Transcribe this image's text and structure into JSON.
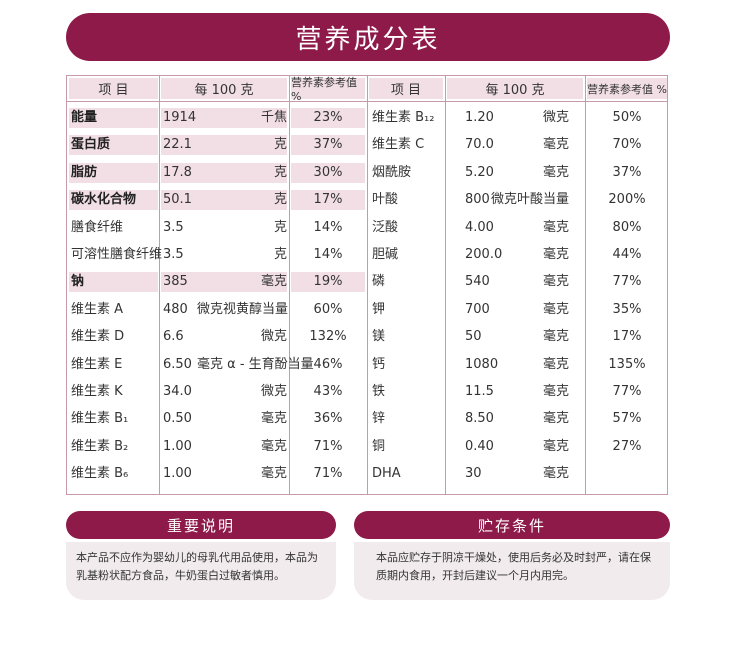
{
  "title": "营养成分表",
  "headers": {
    "item": "项 目",
    "per100": "每 100 克",
    "nrv": "营养素参考值 %"
  },
  "left_rows": [
    {
      "name": "能量",
      "value": "1914",
      "unit": "千焦",
      "nrv": "23%",
      "bold": true,
      "highlight": true
    },
    {
      "name": "蛋白质",
      "value": "22.1",
      "unit": "克",
      "nrv": "37%",
      "bold": true,
      "highlight": true
    },
    {
      "name": "脂肪",
      "value": "17.8",
      "unit": "克",
      "nrv": "30%",
      "bold": true,
      "highlight": true
    },
    {
      "name": "碳水化合物",
      "value": "50.1",
      "unit": "克",
      "nrv": "17%",
      "bold": true,
      "highlight": true
    },
    {
      "name": "膳食纤维",
      "value": "3.5",
      "unit": "克",
      "nrv": "14%",
      "bold": false,
      "highlight": false
    },
    {
      "name": "可溶性膳食纤维",
      "value": "3.5",
      "unit": "克",
      "nrv": "14%",
      "bold": false,
      "highlight": false
    },
    {
      "name": "钠",
      "value": "385",
      "unit": "毫克",
      "nrv": "19%",
      "bold": true,
      "highlight": true
    },
    {
      "name": "维生素 A",
      "value": "480",
      "unit": "微克视黄醇当量",
      "nrv": "60%",
      "bold": false,
      "highlight": false
    },
    {
      "name": "维生素 D",
      "value": "6.6",
      "unit": "微克",
      "nrv": "132%",
      "bold": false,
      "highlight": false
    },
    {
      "name": "维生素 E",
      "value": "6.50",
      "unit": "毫克 α - 生育酚当量",
      "nrv": "46%",
      "bold": false,
      "highlight": false
    },
    {
      "name": "维生素 K",
      "value": "34.0",
      "unit": "微克",
      "nrv": "43%",
      "bold": false,
      "highlight": false
    },
    {
      "name": "维生素 B₁",
      "value": "0.50",
      "unit": "毫克",
      "nrv": "36%",
      "bold": false,
      "highlight": false
    },
    {
      "name": "维生素 B₂",
      "value": "1.00",
      "unit": "毫克",
      "nrv": "71%",
      "bold": false,
      "highlight": false
    },
    {
      "name": "维生素 B₆",
      "value": "1.00",
      "unit": "毫克",
      "nrv": "71%",
      "bold": false,
      "highlight": false
    }
  ],
  "right_rows": [
    {
      "name": "维生素 B₁₂",
      "value": "1.20",
      "unit": "微克",
      "nrv": "50%"
    },
    {
      "name": "维生素 C",
      "value": "70.0",
      "unit": "毫克",
      "nrv": "70%"
    },
    {
      "name": "烟酰胺",
      "value": "5.20",
      "unit": "毫克",
      "nrv": "37%"
    },
    {
      "name": "叶酸",
      "value": "800",
      "unit": "微克叶酸当量",
      "nrv": "200%"
    },
    {
      "name": "泛酸",
      "value": "4.00",
      "unit": "毫克",
      "nrv": "80%"
    },
    {
      "name": "胆碱",
      "value": "200.0",
      "unit": "毫克",
      "nrv": "44%"
    },
    {
      "name": "磷",
      "value": "540",
      "unit": "毫克",
      "nrv": "77%"
    },
    {
      "name": "钾",
      "value": "700",
      "unit": "毫克",
      "nrv": "35%"
    },
    {
      "name": "镁",
      "value": "50",
      "unit": "毫克",
      "nrv": "17%"
    },
    {
      "name": "钙",
      "value": "1080",
      "unit": "毫克",
      "nrv": "135%"
    },
    {
      "name": "铁",
      "value": "11.5",
      "unit": "毫克",
      "nrv": "77%"
    },
    {
      "name": "锌",
      "value": "8.50",
      "unit": "毫克",
      "nrv": "57%"
    },
    {
      "name": "铜",
      "value": "0.40",
      "unit": "毫克",
      "nrv": "27%"
    },
    {
      "name": "DHA",
      "value": "30",
      "unit": "毫克",
      "nrv": ""
    }
  ],
  "notes": {
    "important_title": "重要说明",
    "important_text": "本产品不应作为婴幼儿的母乳代用品使用，本品为乳基粉状配方食品，牛奶蛋白过敏者慎用。",
    "storage_title": "贮存条件",
    "storage_text": "本品应贮存于阴凉干燥处，使用后务必及时封严，请在保质期内食用，开封后建议一个月内用完。"
  },
  "colors": {
    "brand": "#8e1a4a",
    "highlight": "#f2dfe6",
    "border": "#c79aaa",
    "note_bg": "#f1ebed"
  }
}
